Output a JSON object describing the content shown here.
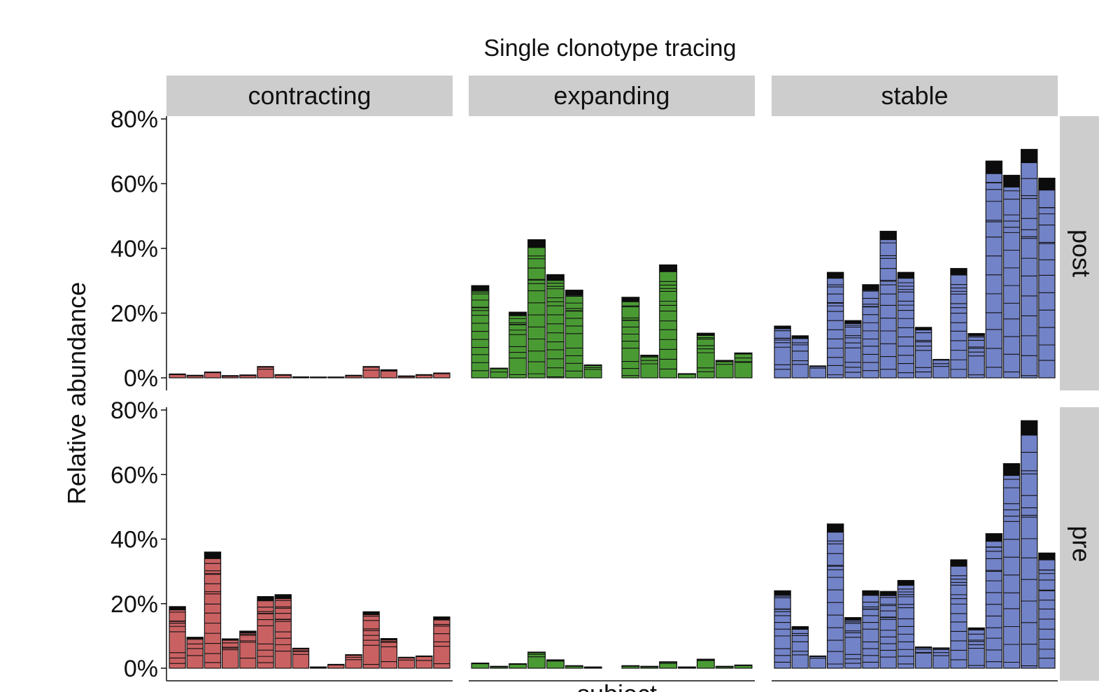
{
  "chart_data": {
    "type": "bar",
    "title": "Single clonotype tracing",
    "ylabel": "Relative abundance",
    "xlabel": "subject",
    "ylim": [
      0,
      80
    ],
    "yticks": [
      "0%",
      "20%",
      "40%",
      "60%",
      "80%"
    ],
    "columns": [
      "contracting",
      "expanding",
      "stable"
    ],
    "rows": [
      "post",
      "pre"
    ],
    "colors": {
      "contracting": "#c96162",
      "expanding": "#4a9a34",
      "stable": "#7383c8",
      "top_clone": "#0c0c0c",
      "strip": "#cdcdcd",
      "outline": "#111111"
    },
    "panels": [
      {
        "column": "contracting",
        "row": "post",
        "values": [
          1.2,
          0.8,
          1.8,
          0.7,
          0.9,
          3.5,
          1.0,
          0.3,
          0.2,
          0.2,
          0.8,
          3.5,
          2.5,
          0.6,
          1.0,
          1.5
        ]
      },
      {
        "column": "expanding",
        "row": "post",
        "values": [
          28.5,
          3.0,
          20.3,
          42.7,
          31.9,
          27.1,
          4.0,
          null,
          24.9,
          7.0,
          34.9,
          1.3,
          13.8,
          5.4,
          7.7
        ]
      },
      {
        "column": "stable",
        "row": "post",
        "values": [
          16.0,
          13.0,
          3.7,
          32.6,
          17.7,
          28.8,
          45.3,
          32.6,
          15.6,
          5.7,
          33.8,
          13.7,
          67.0,
          62.6,
          70.6,
          61.7
        ]
      },
      {
        "column": "contracting",
        "row": "pre",
        "values": [
          19.1,
          9.6,
          36.0,
          9.1,
          11.5,
          22.2,
          22.8,
          6.2,
          0.4,
          1.2,
          4.2,
          17.5,
          9.2,
          3.4,
          3.8,
          15.9
        ]
      },
      {
        "column": "expanding",
        "row": "pre",
        "values": [
          1.6,
          0.6,
          1.4,
          5.0,
          2.6,
          0.8,
          0.4,
          null,
          0.8,
          0.6,
          2.0,
          0.4,
          2.8,
          0.6,
          1.0
        ]
      },
      {
        "column": "stable",
        "row": "pre",
        "values": [
          24.0,
          12.9,
          3.8,
          44.7,
          15.7,
          24.0,
          23.8,
          27.2,
          6.6,
          6.3,
          33.6,
          12.5,
          41.7,
          63.4,
          76.7,
          35.7
        ]
      }
    ]
  }
}
